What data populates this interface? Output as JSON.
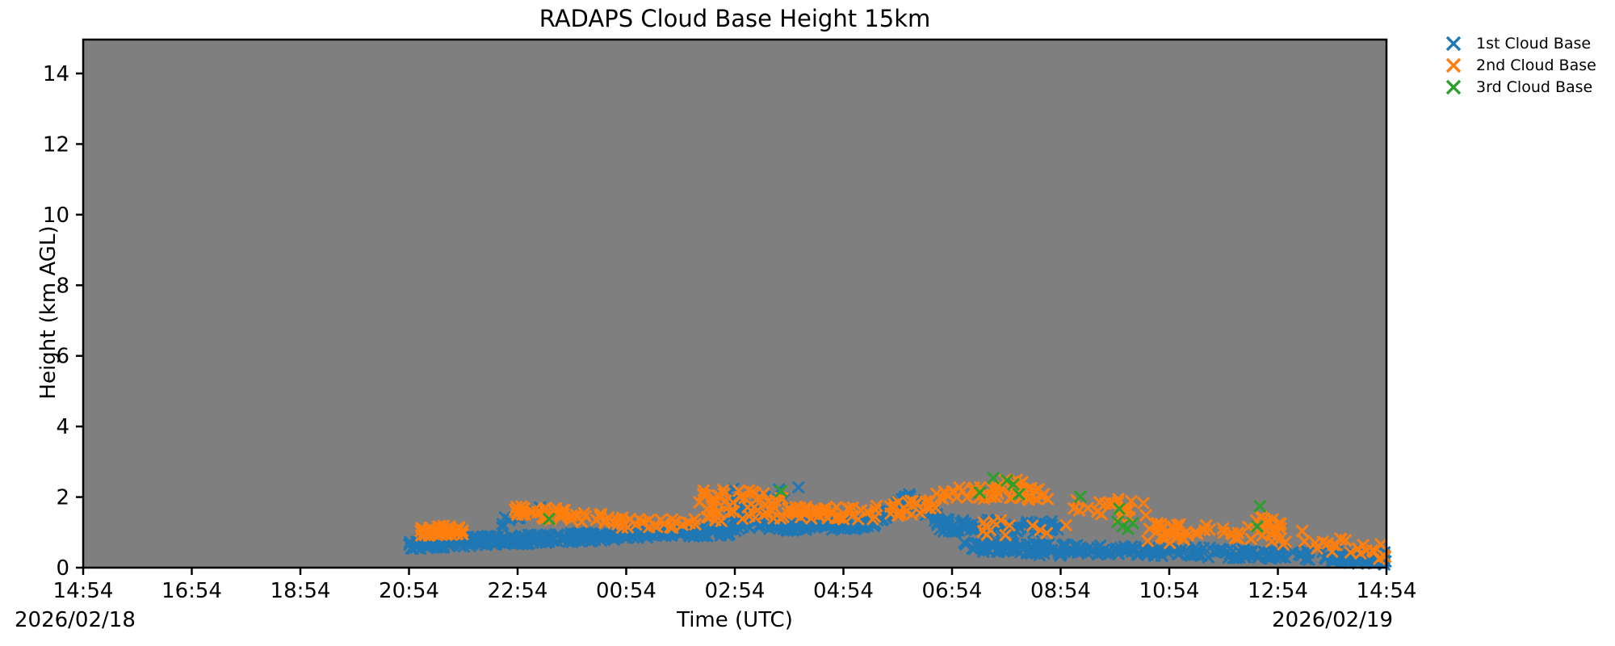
{
  "title": "RADAPS Cloud Base Height 15km",
  "axes": {
    "xlabel": "Time (UTC)",
    "ylabel": "Height (km AGL)",
    "x_tick_labels": [
      "14:54",
      "16:54",
      "18:54",
      "20:54",
      "22:54",
      "00:54",
      "02:54",
      "04:54",
      "06:54",
      "08:54",
      "10:54",
      "12:54",
      "14:54"
    ],
    "y_tick_values": [
      0,
      2,
      4,
      6,
      8,
      10,
      12,
      14
    ],
    "y_tick_labels": [
      "0",
      "2",
      "4",
      "6",
      "8",
      "10",
      "12",
      "14"
    ],
    "date_left": "2026/02/18",
    "date_right": "2026/02/19",
    "x_span_hours": 24,
    "y_min_km": 0,
    "y_max_km": 14.96,
    "plot_bg_color": "#7f7f7f",
    "figure_bg_color": "#ffffff",
    "axis_color": "#000000"
  },
  "legend": {
    "items": [
      {
        "label": "1st Cloud Base",
        "color": "#1f77b4"
      },
      {
        "label": "2nd Cloud Base",
        "color": "#ff7f0e"
      },
      {
        "label": "3rd Cloud Base",
        "color": "#2ca02c"
      }
    ]
  },
  "chart_data": {
    "type": "scatter",
    "marker": "x",
    "title": "RADAPS Cloud Base Height 15km",
    "xlabel": "Time (UTC)",
    "ylabel": "Height (km AGL)",
    "x_unit": "hours after 2026/02/18 14:54 UTC (0 = left edge, 24 = right edge)",
    "y_unit": "km AGL",
    "xlim": [
      0,
      24
    ],
    "ylim": [
      0,
      14.96
    ],
    "grid": false,
    "legend_position": "outside upper right",
    "segment_format": "[t_start_h, t_end_h, y_center_start_km, y_center_end_km, y_spread_km, n_points] — noisy band expanded with seeded PRNG",
    "series": [
      {
        "name": "1st Cloud Base",
        "color": "#1f77b4",
        "segments": [
          [
            6.0,
            7.9,
            0.66,
            0.8,
            0.14,
            110
          ],
          [
            7.6,
            8.45,
            1.3,
            1.55,
            0.22,
            10
          ],
          [
            7.9,
            10.1,
            0.78,
            0.92,
            0.13,
            120
          ],
          [
            10.1,
            11.9,
            0.95,
            1.05,
            0.13,
            100
          ],
          [
            11.9,
            12.55,
            1.3,
            1.45,
            0.3,
            45
          ],
          [
            11.95,
            13.2,
            2.0,
            2.1,
            0.25,
            8
          ],
          [
            12.55,
            14.6,
            1.15,
            1.22,
            0.12,
            115
          ],
          [
            14.6,
            15.25,
            1.35,
            2.0,
            0.12,
            40
          ],
          [
            15.25,
            15.75,
            1.95,
            1.35,
            0.15,
            30
          ],
          [
            15.7,
            18.0,
            1.2,
            1.15,
            0.18,
            80
          ],
          [
            16.2,
            24.0,
            0.6,
            0.3,
            0.14,
            260
          ],
          [
            16.6,
            18.4,
            0.55,
            0.5,
            0.18,
            18
          ],
          [
            23.0,
            24.0,
            0.25,
            0.18,
            0.1,
            45
          ]
        ]
      },
      {
        "name": "2nd Cloud Base",
        "color": "#ff7f0e",
        "segments": [
          [
            6.2,
            7.0,
            1.02,
            1.08,
            0.14,
            40
          ],
          [
            7.94,
            8.9,
            1.58,
            1.5,
            0.17,
            35
          ],
          [
            8.9,
            9.8,
            1.42,
            1.38,
            0.14,
            16
          ],
          [
            9.8,
            11.3,
            1.28,
            1.25,
            0.15,
            30
          ],
          [
            11.3,
            12.9,
            1.75,
            1.8,
            0.45,
            55
          ],
          [
            12.9,
            14.6,
            1.6,
            1.5,
            0.18,
            45
          ],
          [
            14.6,
            15.7,
            1.6,
            1.8,
            0.22,
            25
          ],
          [
            15.7,
            17.8,
            2.1,
            2.1,
            0.18,
            45
          ],
          [
            16.8,
            17.3,
            2.4,
            2.35,
            0.15,
            10
          ],
          [
            16.5,
            18.1,
            1.15,
            1.1,
            0.22,
            14
          ],
          [
            18.2,
            19.6,
            1.85,
            1.55,
            0.28,
            20
          ],
          [
            19.6,
            20.35,
            1.0,
            0.95,
            0.28,
            26
          ],
          [
            20.4,
            21.4,
            1.1,
            1.05,
            0.22,
            12
          ],
          [
            21.4,
            22.2,
            1.15,
            1.0,
            0.38,
            26
          ],
          [
            22.3,
            23.3,
            0.8,
            0.7,
            0.28,
            12
          ],
          [
            23.3,
            24.0,
            0.52,
            0.45,
            0.22,
            12
          ]
        ]
      },
      {
        "name": "3rd Cloud Base",
        "color": "#2ca02c",
        "points": [
          [
            8.58,
            1.38
          ],
          [
            12.85,
            2.17
          ],
          [
            16.51,
            2.13
          ],
          [
            16.76,
            2.54
          ],
          [
            17.01,
            2.47
          ],
          [
            17.13,
            2.36
          ],
          [
            17.23,
            2.08
          ],
          [
            18.36,
            2.01
          ],
          [
            19.05,
            1.3
          ],
          [
            19.08,
            1.67
          ],
          [
            19.14,
            1.17
          ],
          [
            19.24,
            1.1
          ],
          [
            19.33,
            1.26
          ],
          [
            21.62,
            1.17
          ],
          [
            21.67,
            1.74
          ]
        ]
      }
    ]
  }
}
